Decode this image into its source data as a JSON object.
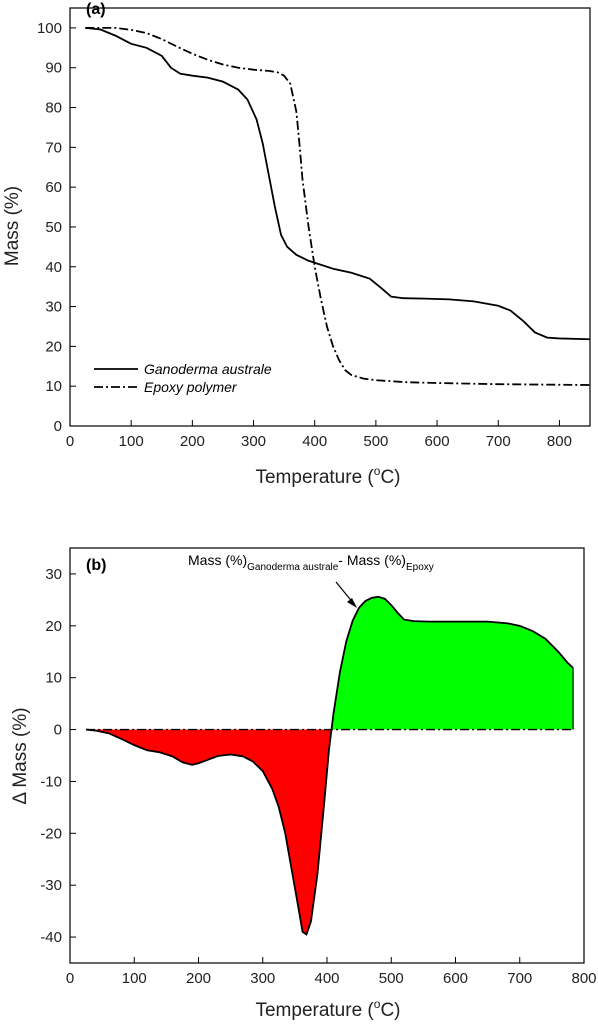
{
  "chart_data": [
    {
      "type": "line",
      "panel_label": "(a)",
      "xlabel": "Temperature (",
      "xlabel_unit": "o",
      "xlabel_suffix": "C)",
      "ylabel": "Mass (%)",
      "xlim": [
        0,
        850
      ],
      "ylim": [
        0,
        105
      ],
      "xticks": [
        0,
        100,
        200,
        300,
        400,
        500,
        600,
        700,
        800
      ],
      "yticks": [
        0,
        10,
        20,
        30,
        40,
        50,
        60,
        70,
        80,
        90,
        100
      ],
      "legend_position": "bottom-left",
      "series": [
        {
          "name": "Ganoderma australe",
          "style": "solid",
          "x": [
            25,
            50,
            75,
            100,
            125,
            150,
            165,
            180,
            200,
            225,
            250,
            275,
            290,
            305,
            315,
            325,
            335,
            345,
            355,
            370,
            390,
            410,
            430,
            460,
            490,
            510,
            525,
            545,
            580,
            620,
            660,
            700,
            720,
            740,
            760,
            780,
            800,
            850
          ],
          "y": [
            100,
            99.6,
            98,
            96,
            95,
            93,
            90,
            88.5,
            88,
            87.5,
            86.5,
            84.5,
            82,
            77,
            71,
            63,
            55,
            48,
            45,
            43,
            41.5,
            40.5,
            39.5,
            38.5,
            37,
            34.5,
            32.5,
            32.1,
            32,
            31.8,
            31.3,
            30.2,
            29,
            26.5,
            23.5,
            22.2,
            22,
            21.8
          ]
        },
        {
          "name": "Epoxy polymer",
          "style": "dashdot",
          "x": [
            25,
            50,
            75,
            100,
            125,
            150,
            175,
            200,
            225,
            250,
            275,
            300,
            325,
            340,
            350,
            360,
            370,
            375,
            380,
            390,
            400,
            410,
            420,
            430,
            440,
            450,
            460,
            480,
            500,
            550,
            600,
            700,
            850
          ],
          "y": [
            100,
            100,
            100,
            99.5,
            98.7,
            97.2,
            95.3,
            93.5,
            92,
            90.8,
            90,
            89.5,
            89.2,
            88.8,
            88,
            86,
            79,
            71,
            62,
            50,
            40,
            32,
            25,
            20,
            16.5,
            14,
            12.8,
            11.9,
            11.5,
            11,
            10.8,
            10.5,
            10.3
          ]
        }
      ]
    },
    {
      "type": "area",
      "panel_label": "(b)",
      "xlabel": "Temperature (",
      "xlabel_unit": "o",
      "xlabel_suffix": "C)",
      "ylabel": "Δ Mass (%)",
      "xlim": [
        0,
        800
      ],
      "ylim": [
        -45,
        35
      ],
      "xticks": [
        0,
        100,
        200,
        300,
        400,
        500,
        600,
        700,
        800
      ],
      "yticks": [
        -40,
        -30,
        -20,
        -10,
        0,
        10,
        20,
        30
      ],
      "annotation": {
        "main": "Mass (%)",
        "sub1": "Ganoderma australe",
        "mid": "- Mass (%)",
        "sub2": "Epoxy",
        "arrow_to": [
          465,
          25
        ]
      },
      "fill_colors": {
        "positive": "#00ff00",
        "negative": "#ff0000"
      },
      "series": [
        {
          "style": "solid",
          "x": [
            25,
            40,
            60,
            80,
            100,
            120,
            140,
            160,
            175,
            190,
            200,
            215,
            230,
            250,
            270,
            285,
            300,
            315,
            325,
            335,
            345,
            355,
            362,
            368,
            375,
            385,
            395,
            403,
            410,
            420,
            430,
            440,
            450,
            460,
            470,
            480,
            490,
            500,
            510,
            520,
            535,
            560,
            600,
            650,
            680,
            700,
            720,
            740,
            760,
            775,
            783
          ],
          "y": [
            0,
            -0.2,
            -0.7,
            -1.8,
            -3,
            -4,
            -4.4,
            -5.2,
            -6.3,
            -6.8,
            -6.5,
            -5.8,
            -5.1,
            -4.8,
            -5.2,
            -6.2,
            -8,
            -11.5,
            -15,
            -20,
            -27,
            -34,
            -39,
            -39.5,
            -37,
            -28,
            -15,
            -4,
            3,
            11,
            17,
            21,
            23.5,
            24.8,
            25.4,
            25.6,
            25.2,
            24,
            22.5,
            21.2,
            20.9,
            20.8,
            20.8,
            20.8,
            20.5,
            20,
            19,
            17.5,
            15,
            12.8,
            11.9
          ]
        }
      ]
    }
  ]
}
